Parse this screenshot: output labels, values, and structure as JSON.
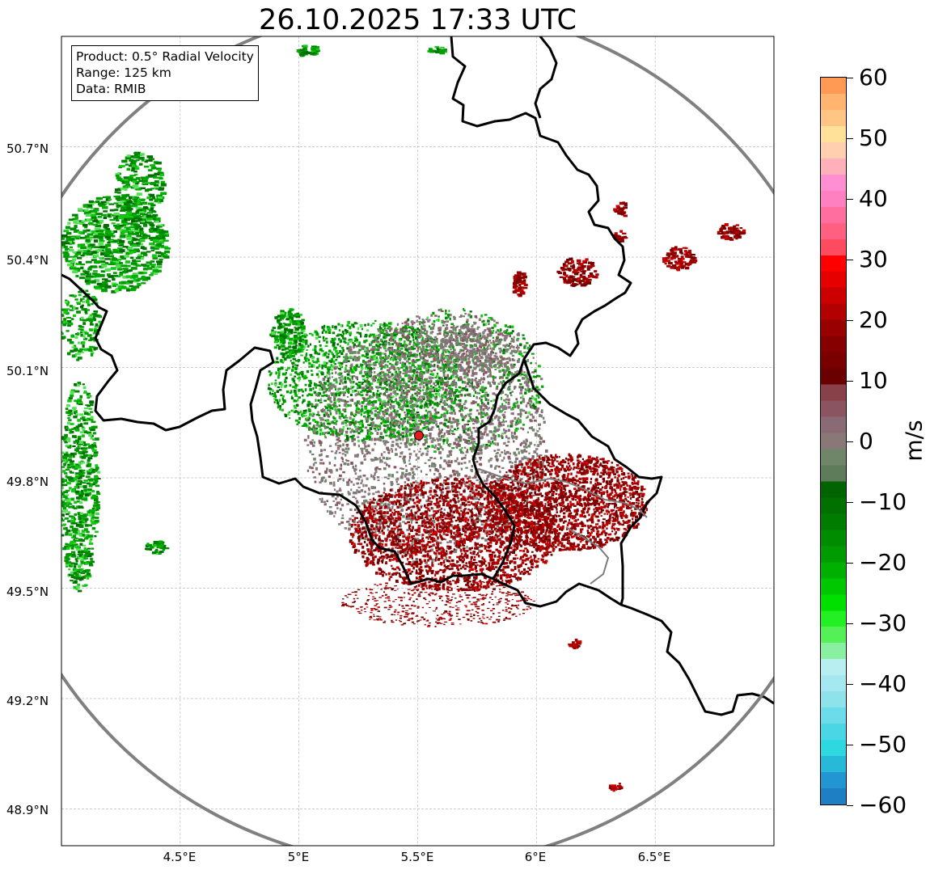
{
  "title": "26.10.2025 17:33 UTC",
  "info": {
    "product": "Product: 0.5° Radial Velocity",
    "range": "Range: 125 km",
    "data": "Data: RMIB"
  },
  "map": {
    "lon_range": [
      4.0,
      7.0
    ],
    "lat_range": [
      48.8,
      51.0
    ],
    "lon_ticks": [
      "4.5°E",
      "5°E",
      "5.5°E",
      "6°E",
      "6.5°E"
    ],
    "lat_ticks": [
      "50.7°N",
      "50.4°N",
      "50.1°N",
      "49.8°N",
      "49.5°N",
      "49.2°N",
      "48.9°N"
    ],
    "gridlines": true,
    "radar_site": {
      "lon": 5.505,
      "lat": 49.915,
      "color": "#e41a1c"
    },
    "range_ring_km": 125,
    "ring_color": "#808080",
    "border_color": "#000000"
  },
  "colorbar": {
    "unit": "m/s",
    "vmin": -60,
    "vmax": 60,
    "tick_labels": [
      "60",
      "50",
      "40",
      "30",
      "20",
      "10",
      "0",
      "−10",
      "−20",
      "−30",
      "−40",
      "−50",
      "−60"
    ],
    "colors_top_to_bottom": [
      "#ff9a55",
      "#ffb570",
      "#ffc585",
      "#ffe19a",
      "#ffcfb0",
      "#ffb0b8",
      "#ff8fd0",
      "#ff80c0",
      "#ff6e9e",
      "#ff5f80",
      "#ff4b60",
      "#ff0000",
      "#e60000",
      "#cc0000",
      "#b30000",
      "#990000",
      "#870000",
      "#7a0000",
      "#6a0000",
      "#884049",
      "#8a5560",
      "#8a6a75",
      "#8a7878",
      "#6f8668",
      "#5e7b5a",
      "#006400",
      "#007000",
      "#007d00",
      "#008c00",
      "#009b00",
      "#00b000",
      "#00c800",
      "#00e000",
      "#22f022",
      "#55f055",
      "#88f0a0",
      "#b8eef0",
      "#a5e8f0",
      "#8ee2ea",
      "#6cdcea",
      "#4ad6e4",
      "#2ed8e0",
      "#28b8d8",
      "#2196d0",
      "#1f7fc4"
    ]
  }
}
